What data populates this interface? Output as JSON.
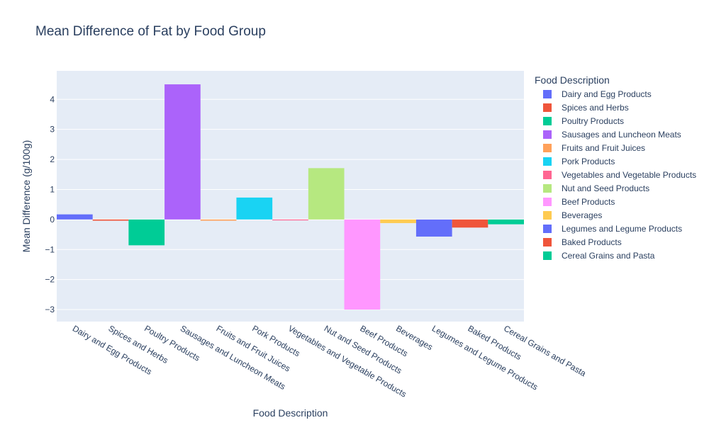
{
  "chart_data": {
    "type": "bar",
    "title": "Mean Difference of Fat by Food Group",
    "xlabel": "Food Description",
    "ylabel": "Mean Difference (g/100g)",
    "legend_title": "Food Description",
    "legend_position": "right",
    "grid": true,
    "ylim": [
      -3.4,
      4.95
    ],
    "yticks": [
      -3,
      -2,
      -1,
      0,
      1,
      2,
      3,
      4
    ],
    "ytick_labels": [
      "−3",
      "−2",
      "−1",
      "0",
      "1",
      "2",
      "3",
      "4"
    ],
    "categories": [
      "Dairy and Egg Products",
      "Spices and Herbs",
      "Poultry Products",
      "Sausages and Luncheon Meats",
      "Fruits and Fruit Juices",
      "Pork Products",
      "Vegetables and Vegetable Products",
      "Nut and Seed Products",
      "Beef Products",
      "Beverages",
      "Legumes and Legume Products",
      "Baked Products",
      "Cereal Grains and Pasta"
    ],
    "values": [
      0.17,
      -0.04,
      -0.86,
      4.5,
      -0.04,
      0.73,
      -0.03,
      1.71,
      -3.0,
      -0.12,
      -0.57,
      -0.27,
      -0.16
    ],
    "colors": [
      "#636efa",
      "#ef553b",
      "#00cc96",
      "#ab63fa",
      "#ffa15a",
      "#19d3f3",
      "#ff6692",
      "#b6e880",
      "#ff97ff",
      "#fecb52",
      "#636efa",
      "#ef553b",
      "#00cc96"
    ]
  }
}
